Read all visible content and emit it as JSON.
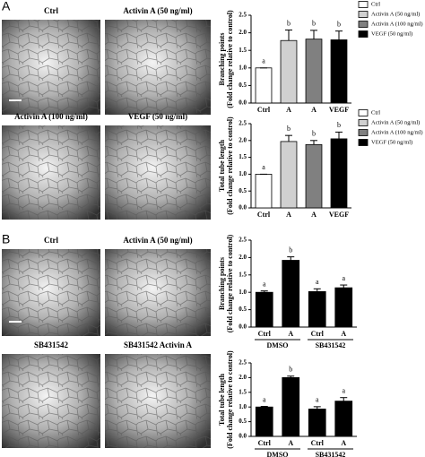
{
  "panels": [
    {
      "label": "A",
      "captions": [
        "Ctrl",
        "Activin A  (50 ng/ml)",
        "Activin A  (100 ng/ml)",
        "VEGF  (50 ng/ml)"
      ]
    },
    {
      "label": "B",
      "captions": [
        "Ctrl",
        "Activin A  (50 ng/ml)",
        "SB431542",
        "SB431542   Activin A"
      ]
    }
  ],
  "chart_data": [
    {
      "type": "bar",
      "ylabel": "Branching points",
      "ylabel_sub": "(Fold change relative to control)",
      "categories": [
        "Ctrl",
        "A",
        "A",
        "VEGF"
      ],
      "values": [
        1.0,
        1.78,
        1.82,
        1.8
      ],
      "errors": [
        0,
        0.3,
        0.25,
        0.25
      ],
      "annotations": [
        "a",
        "b",
        "b",
        "b"
      ],
      "colors": [
        "#ffffff",
        "#d0d0d0",
        "#808080",
        "#000000"
      ],
      "legend": [
        {
          "name": "Ctrl",
          "color": "#ffffff"
        },
        {
          "name": "Activin A (50 ng/ml)",
          "color": "#d0d0d0"
        },
        {
          "name": "Activin A (100 ng/ml)",
          "color": "#808080"
        },
        {
          "name": "VEGF (50 ng/ml)",
          "color": "#000000"
        }
      ],
      "ylim": [
        0,
        2.5
      ],
      "yticks": [
        {
          "value": 0,
          "label": "0.0"
        },
        0.5,
        {
          "value": 1,
          "label": "1.0"
        },
        1.5,
        {
          "value": 2,
          "label": "2.0"
        },
        2.5
      ]
    },
    {
      "type": "bar",
      "ylabel": "Total tube length",
      "ylabel_sub": "(Fold change relative to control)",
      "categories": [
        "Ctrl",
        "A",
        "A",
        "VEGF"
      ],
      "values": [
        1.0,
        1.97,
        1.88,
        2.05
      ],
      "errors": [
        0,
        0.18,
        0.12,
        0.2
      ],
      "annotations": [
        "a",
        "b",
        "b",
        "b"
      ],
      "colors": [
        "#ffffff",
        "#d0d0d0",
        "#808080",
        "#000000"
      ],
      "legend": [
        {
          "name": "Ctrl",
          "color": "#ffffff"
        },
        {
          "name": "Activin A (50 ng/ml)",
          "color": "#d0d0d0"
        },
        {
          "name": "Activin A (100 ng/ml)",
          "color": "#808080"
        },
        {
          "name": "VEGF (50 ng/ml)",
          "color": "#000000"
        }
      ],
      "ylim": [
        0,
        2.5
      ],
      "yticks": [
        {
          "value": 0,
          "label": "0.0"
        },
        0.5,
        {
          "value": 1,
          "label": "1.0"
        },
        1.5,
        {
          "value": 2,
          "label": "2.0"
        },
        2.5
      ]
    },
    {
      "type": "bar",
      "ylabel": "Branching points",
      "ylabel_sub": "(Fold change relative to control)",
      "categories": [
        "Ctrl",
        "A",
        "Ctrl",
        "A"
      ],
      "groups": [
        "DMSO",
        "SB431542"
      ],
      "values": [
        1.0,
        1.92,
        1.02,
        1.13
      ],
      "errors": [
        0.04,
        0.1,
        0.08,
        0.08
      ],
      "annotations": [
        "a",
        "b",
        "a",
        "a"
      ],
      "colors": [
        "#000000",
        "#000000",
        "#000000",
        "#000000"
      ],
      "ylim": [
        0,
        2.5
      ],
      "yticks": [
        {
          "value": 0,
          "label": "0.0"
        },
        0.5,
        {
          "value": 1,
          "label": "1.0"
        },
        1.5,
        {
          "value": 2,
          "label": "2.0"
        },
        2.5
      ]
    },
    {
      "type": "bar",
      "ylabel": "Total tube length",
      "ylabel_sub": "(Fold change relative to control)",
      "categories": [
        "Ctrl",
        "A",
        "Ctrl",
        "A"
      ],
      "groups": [
        "DMSO",
        "SB431542"
      ],
      "values": [
        1.0,
        2.0,
        0.93,
        1.2
      ],
      "errors": [
        0.02,
        0.05,
        0.08,
        0.12
      ],
      "annotations": [
        "a",
        "b",
        "a",
        "a"
      ],
      "colors": [
        "#000000",
        "#000000",
        "#000000",
        "#000000"
      ],
      "ylim": [
        0,
        2.5
      ],
      "yticks": [
        {
          "value": 0,
          "label": "0.0"
        },
        0.5,
        {
          "value": 1,
          "label": "1.0"
        },
        1.5,
        {
          "value": 2,
          "label": "2.0"
        },
        2.5
      ]
    }
  ]
}
